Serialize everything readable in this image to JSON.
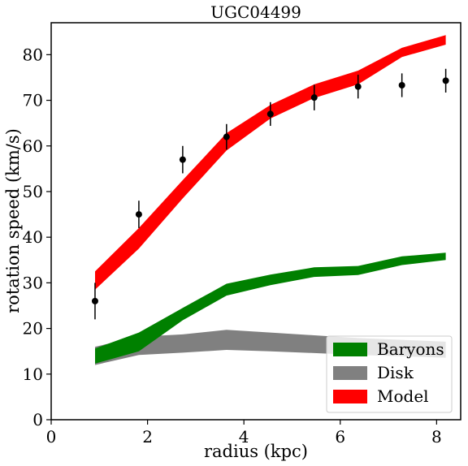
{
  "chart_data": {
    "type": "area",
    "title": "UGC04499",
    "xlabel": "radius (kpc)",
    "ylabel": "rotation speed (km/s)",
    "xlim": [
      0,
      8.5
    ],
    "ylim": [
      0,
      87
    ],
    "x_ticks": [
      "0",
      "2",
      "4",
      "6",
      "8"
    ],
    "y_ticks": [
      "0",
      "10",
      "20",
      "30",
      "40",
      "50",
      "60",
      "70",
      "80"
    ],
    "grid": false,
    "legend_position": "lower-right",
    "radius": [
      0.91,
      1.82,
      2.73,
      3.64,
      4.55,
      5.46,
      6.37,
      7.28,
      8.19
    ],
    "series": [
      {
        "name": "Disk",
        "color": "#808080",
        "lower": [
          12.0,
          14.2,
          14.7,
          15.3,
          15.0,
          14.6,
          14.2,
          13.9,
          13.6
        ],
        "upper": [
          16.0,
          18.2,
          18.7,
          19.7,
          19.1,
          18.5,
          17.9,
          17.5,
          17.1
        ]
      },
      {
        "name": "Baryons",
        "color": "#008000",
        "lower": [
          12.3,
          15.0,
          21.8,
          27.2,
          29.5,
          31.3,
          31.7,
          33.9,
          35.0
        ],
        "upper": [
          15.6,
          19.1,
          24.5,
          29.8,
          31.8,
          33.4,
          33.7,
          35.8,
          36.6
        ]
      },
      {
        "name": "Model",
        "color": "#ff0000",
        "lower": [
          28.5,
          37.5,
          48.5,
          59.0,
          66.0,
          70.5,
          73.5,
          79.5,
          82.2
        ],
        "upper": [
          32.5,
          42.0,
          52.5,
          62.8,
          69.0,
          73.5,
          76.5,
          81.5,
          84.3
        ]
      }
    ],
    "observed": {
      "color": "#000000",
      "x": [
        0.91,
        1.82,
        2.73,
        3.64,
        4.55,
        5.46,
        6.37,
        7.28,
        8.19
      ],
      "y": [
        26.0,
        45.0,
        57.0,
        62.0,
        67.0,
        70.6,
        73.0,
        73.3,
        74.3
      ],
      "err": [
        4.0,
        3.0,
        3.0,
        2.8,
        2.6,
        2.8,
        2.6,
        2.6,
        2.6
      ]
    },
    "legend": [
      "Baryons",
      "Disk",
      "Model"
    ]
  }
}
